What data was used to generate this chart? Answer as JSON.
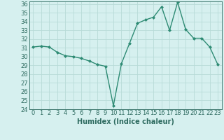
{
  "x": [
    0,
    1,
    2,
    3,
    4,
    5,
    6,
    7,
    8,
    9,
    10,
    11,
    12,
    13,
    14,
    15,
    16,
    17,
    18,
    19,
    20,
    21,
    22,
    23
  ],
  "y": [
    31.1,
    31.2,
    31.1,
    30.5,
    30.1,
    30.0,
    29.8,
    29.5,
    29.1,
    28.9,
    24.4,
    29.2,
    31.5,
    33.8,
    34.2,
    34.5,
    35.7,
    33.0,
    36.2,
    33.1,
    32.1,
    32.1,
    31.1,
    29.1
  ],
  "xlabel": "Humidex (Indice chaleur)",
  "ylim": [
    24,
    36
  ],
  "xlim": [
    -0.5,
    23.5
  ],
  "yticks": [
    24,
    25,
    26,
    27,
    28,
    29,
    30,
    31,
    32,
    33,
    34,
    35,
    36
  ],
  "xticks": [
    0,
    1,
    2,
    3,
    4,
    5,
    6,
    7,
    8,
    9,
    10,
    11,
    12,
    13,
    14,
    15,
    16,
    17,
    18,
    19,
    20,
    21,
    22,
    23
  ],
  "line_color": "#2e8b74",
  "marker": "D",
  "marker_size": 2.0,
  "bg_color": "#d6f0ef",
  "grid_color": "#b8dbd8",
  "tick_fontsize": 6,
  "label_fontsize": 7,
  "text_color": "#2e6b60"
}
